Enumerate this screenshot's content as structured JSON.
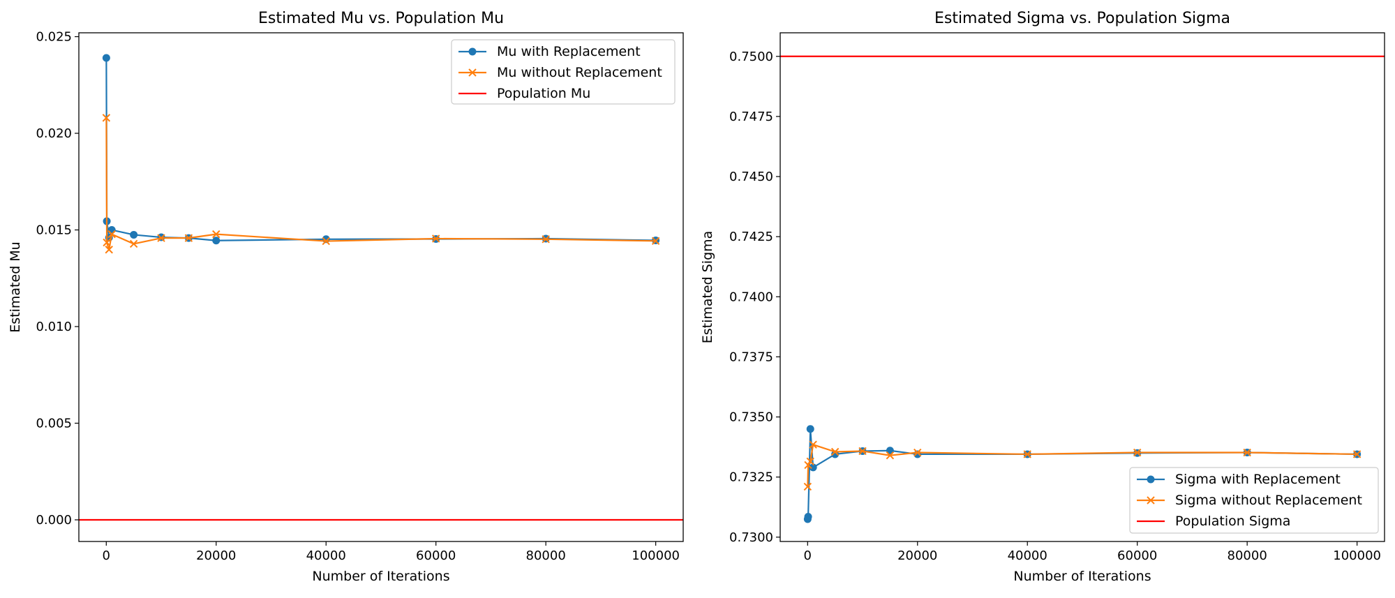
{
  "chart_data": [
    {
      "type": "line",
      "title": "Estimated Mu vs. Population Mu",
      "xlabel": "Number of Iterations",
      "ylabel": "Estimated Mu",
      "xlim": [
        -4990,
        105000
      ],
      "ylim": [
        -0.00112,
        0.0252
      ],
      "xticks": [
        0,
        20000,
        40000,
        60000,
        80000,
        100000
      ],
      "xtick_labels": [
        "0",
        "20000",
        "40000",
        "60000",
        "80000",
        "100000"
      ],
      "yticks": [
        0.0,
        0.005,
        0.01,
        0.015,
        0.02,
        0.025
      ],
      "ytick_labels": [
        "0.000",
        "0.005",
        "0.010",
        "0.015",
        "0.020",
        "0.025"
      ],
      "grid": false,
      "legend_position": "top-right",
      "series": [
        {
          "name": "Mu with Replacement",
          "color": "#1f77b4",
          "marker": "circle",
          "x": [
            10,
            100,
            500,
            1000,
            5000,
            10000,
            15000,
            20000,
            40000,
            60000,
            80000,
            100000
          ],
          "y": [
            0.0239,
            0.01545,
            0.0146,
            0.015,
            0.01475,
            0.01462,
            0.01458,
            0.01445,
            0.01452,
            0.01453,
            0.01455,
            0.01446
          ]
        },
        {
          "name": "Mu without Replacement",
          "color": "#ff7f0e",
          "marker": "x",
          "x": [
            10,
            100,
            500,
            1000,
            5000,
            10000,
            15000,
            20000,
            40000,
            60000,
            80000,
            100000
          ],
          "y": [
            0.0208,
            0.01435,
            0.01398,
            0.01478,
            0.01428,
            0.01458,
            0.01458,
            0.01478,
            0.01442,
            0.01455,
            0.01452,
            0.01443
          ]
        }
      ],
      "reference_lines": [
        {
          "name": "Population Mu",
          "color": "#ff0000",
          "y": 0.0
        }
      ]
    },
    {
      "type": "line",
      "title": "Estimated Sigma vs. Population Sigma",
      "xlabel": "Number of Iterations",
      "ylabel": "Estimated Sigma",
      "xlim": [
        -4990,
        105000
      ],
      "ylim": [
        0.72982,
        0.75098
      ],
      "xticks": [
        0,
        20000,
        40000,
        60000,
        80000,
        100000
      ],
      "xtick_labels": [
        "0",
        "20000",
        "40000",
        "60000",
        "80000",
        "100000"
      ],
      "yticks": [
        0.73,
        0.7325,
        0.735,
        0.7375,
        0.74,
        0.7425,
        0.745,
        0.7475,
        0.75
      ],
      "ytick_labels": [
        "0.7300",
        "0.7325",
        "0.7350",
        "0.7375",
        "0.7400",
        "0.7425",
        "0.7450",
        "0.7475",
        "0.7500"
      ],
      "grid": false,
      "legend_position": "bottom-right",
      "series": [
        {
          "name": "Sigma with Replacement",
          "color": "#1f77b4",
          "marker": "circle",
          "x": [
            10,
            100,
            500,
            1000,
            5000,
            10000,
            15000,
            20000,
            40000,
            60000,
            80000,
            100000
          ],
          "y": [
            0.73075,
            0.73085,
            0.7345,
            0.7329,
            0.73345,
            0.73358,
            0.7336,
            0.73345,
            0.73345,
            0.7335,
            0.73352,
            0.73345
          ]
        },
        {
          "name": "Sigma without Replacement",
          "color": "#ff7f0e",
          "marker": "x",
          "x": [
            10,
            100,
            500,
            1000,
            5000,
            10000,
            15000,
            20000,
            40000,
            60000,
            80000,
            100000
          ],
          "y": [
            0.7321,
            0.733,
            0.73315,
            0.73385,
            0.73355,
            0.73358,
            0.7334,
            0.73352,
            0.73345,
            0.73352,
            0.73352,
            0.73345
          ]
        }
      ],
      "reference_lines": [
        {
          "name": "Population Sigma",
          "color": "#ff0000",
          "y": 0.75
        }
      ]
    }
  ]
}
